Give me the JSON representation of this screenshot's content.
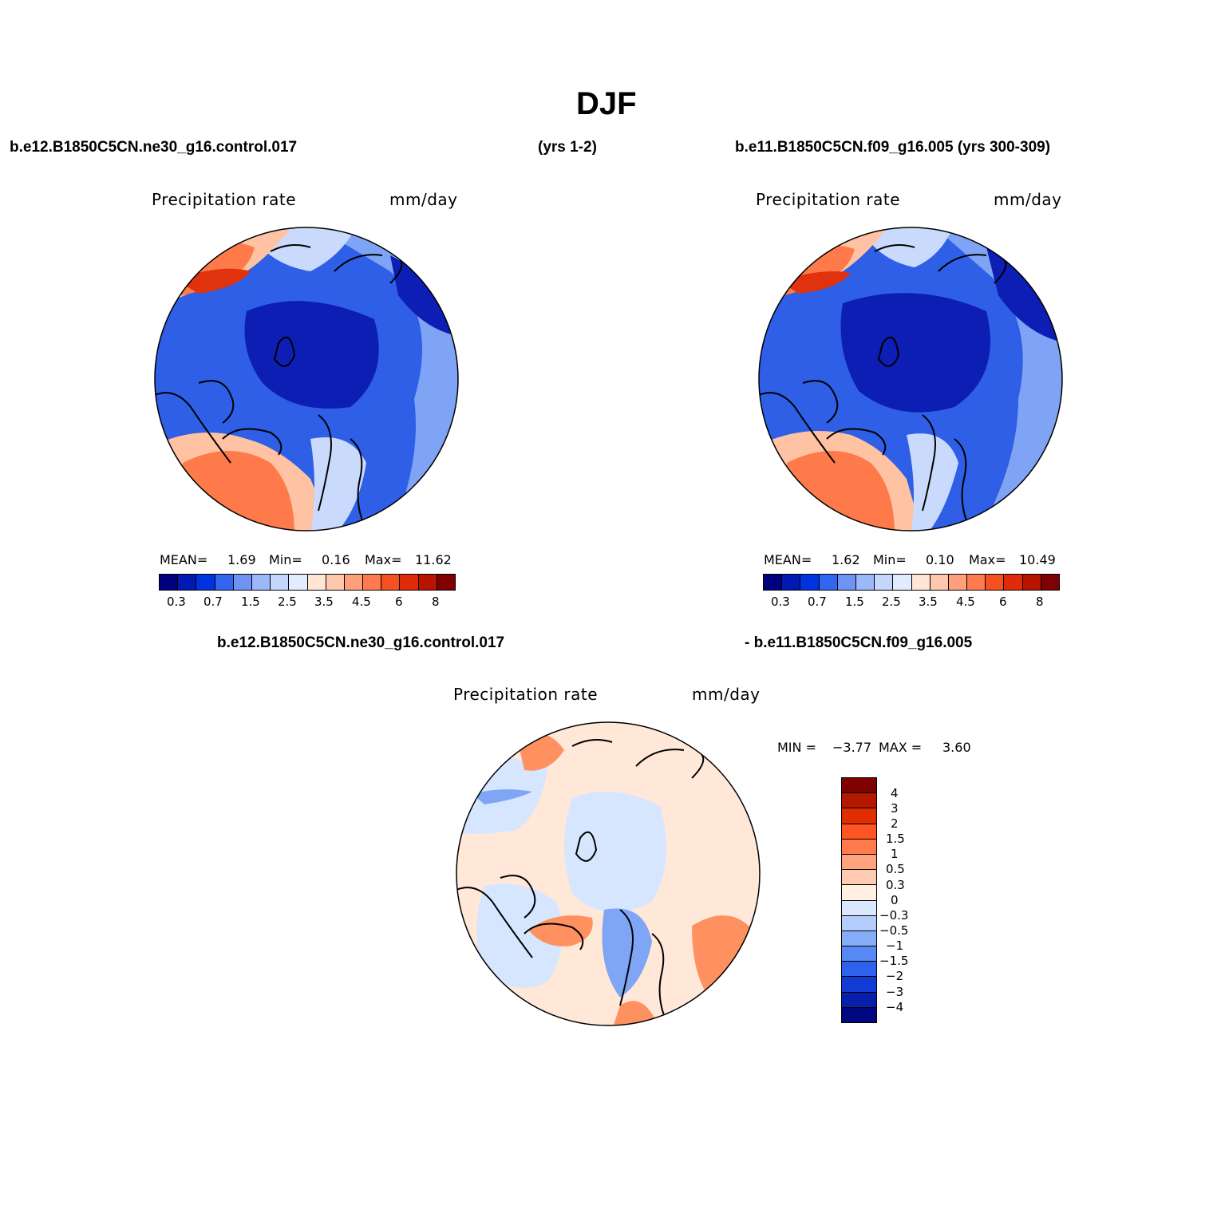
{
  "title": "DJF",
  "header": {
    "left_case": "b.e12.B1850C5CN.ne30_g16.control.017",
    "left_years": "(yrs 1-2)",
    "right_case": "b.e11.B1850C5CN.f09_g16.005 (yrs 300-309)"
  },
  "panels": {
    "left": {
      "label": "Precipitation rate",
      "units": "mm/day",
      "mean_label": "MEAN=",
      "mean_value": "1.69",
      "min_label": "Min=",
      "min_value": "0.16",
      "max_label": "Max=",
      "max_value": "11.62"
    },
    "right": {
      "label": "Precipitation rate",
      "units": "mm/day",
      "mean_label": "MEAN=",
      "mean_value": "1.62",
      "min_label": "Min=",
      "min_value": "0.10",
      "max_label": "Max=",
      "max_value": "10.49"
    },
    "diff": {
      "case_a": "b.e12.B1850C5CN.ne30_g16.control.017",
      "case_b": "- b.e11.B1850C5CN.f09_g16.005",
      "label": "Precipitation rate",
      "units": "mm/day",
      "min_label": "MIN =",
      "min_value": "−3.77",
      "max_label": "MAX =",
      "max_value": "3.60"
    }
  },
  "colorbar_main": {
    "colors": [
      "#00007f",
      "#0019b3",
      "#0033e0",
      "#3366f0",
      "#6e93f5",
      "#9cb7fa",
      "#c5d6fd",
      "#e2ecff",
      "#ffe5d4",
      "#ffc7ac",
      "#ffa07c",
      "#ff7a4f",
      "#f55020",
      "#e02a08",
      "#b81400",
      "#7f0000"
    ],
    "ticks": [
      "0.3",
      "0.7",
      "1.5",
      "2.5",
      "3.5",
      "4.5",
      "6",
      "8"
    ]
  },
  "colorbar_diff": {
    "colors": [
      "#7f0000",
      "#b41900",
      "#e02e00",
      "#ff5522",
      "#ff7b4b",
      "#ffa37c",
      "#ffcbb0",
      "#fff0e2",
      "#d9e8ff",
      "#b3cdfc",
      "#86adf8",
      "#5888f4",
      "#2e62ec",
      "#123bd6",
      "#0620ac",
      "#00087f"
    ],
    "ticks": [
      "4",
      "3",
      "2",
      "1.5",
      "1",
      "0.5",
      "0.3",
      "0",
      "−0.3",
      "−0.5",
      "−1",
      "−1.5",
      "−2",
      "−3",
      "−4"
    ]
  },
  "map_colors": {
    "deep": "#0c1eb4",
    "mid": "#2e5fe6",
    "light": "#7fa3f5",
    "pale": "#c9dafd",
    "warm_light": "#ffc2a3",
    "warm": "#ff7a4a",
    "warm_dark": "#e0320c",
    "diff_base": "#ffe8d8",
    "diff_pale_blue": "#d6e6ff",
    "diff_blue": "#7ea6f5",
    "diff_orange": "#ff9060"
  }
}
